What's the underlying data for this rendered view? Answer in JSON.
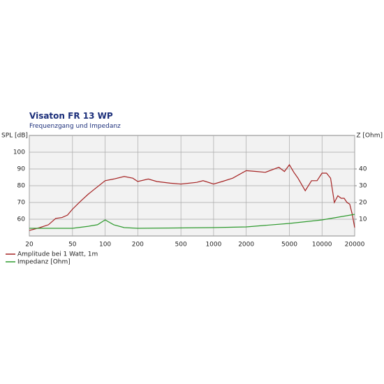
{
  "chart_data": {
    "type": "line",
    "title": "Visaton FR 13 WP",
    "subtitle": "Frequenzgang und Impedanz",
    "ylabel": "SPL [dB]",
    "y2label": "Z [Ohm]",
    "xscale": "log",
    "grid": true,
    "xlim": [
      20,
      20000
    ],
    "xticks": [
      20,
      50,
      100,
      200,
      500,
      1000,
      2000,
      5000,
      10000,
      20000
    ],
    "ylim": [
      50,
      110
    ],
    "yticks": [
      60,
      70,
      80,
      90,
      100
    ],
    "y2lim": [
      0,
      60
    ],
    "y2ticks": [
      10,
      20,
      30,
      40
    ],
    "series": [
      {
        "name": "Amplitude bei 1 Watt, 1m",
        "color": "#a52222",
        "x": [
          20,
          25,
          30,
          35,
          40,
          45,
          50,
          60,
          70,
          80,
          100,
          120,
          150,
          180,
          200,
          250,
          300,
          400,
          500,
          700,
          800,
          1000,
          1200,
          1500,
          2000,
          2500,
          3000,
          4000,
          4500,
          5000,
          5500,
          6000,
          7000,
          8000,
          9000,
          10000,
          11000,
          12000,
          13000,
          14000,
          15000,
          16000,
          17000,
          18000,
          19000,
          20000
        ],
        "values": [
          53.3,
          55,
          56.7,
          60.5,
          61,
          62.5,
          66,
          71,
          75,
          78,
          83,
          84,
          85.5,
          84.5,
          82.5,
          84,
          82.5,
          81.5,
          81,
          82,
          83,
          81,
          82.5,
          84.5,
          89,
          88.5,
          88,
          91,
          88.5,
          92.5,
          88,
          84.5,
          77,
          83,
          83,
          87.5,
          87.5,
          84.5,
          70,
          74,
          72.5,
          72.5,
          70,
          69,
          63,
          55
        ]
      },
      {
        "name": "Impedanz [Ohm]",
        "color": "#2e9a2e",
        "axis": "y2",
        "x": [
          20,
          50,
          70,
          85,
          100,
          120,
          150,
          200,
          1000,
          2000,
          5000,
          10000,
          20000
        ],
        "values": [
          4.6,
          4.6,
          5.8,
          6.7,
          9.6,
          6.7,
          5,
          4.6,
          5,
          5.4,
          7.5,
          9.6,
          12.9
        ]
      }
    ]
  }
}
